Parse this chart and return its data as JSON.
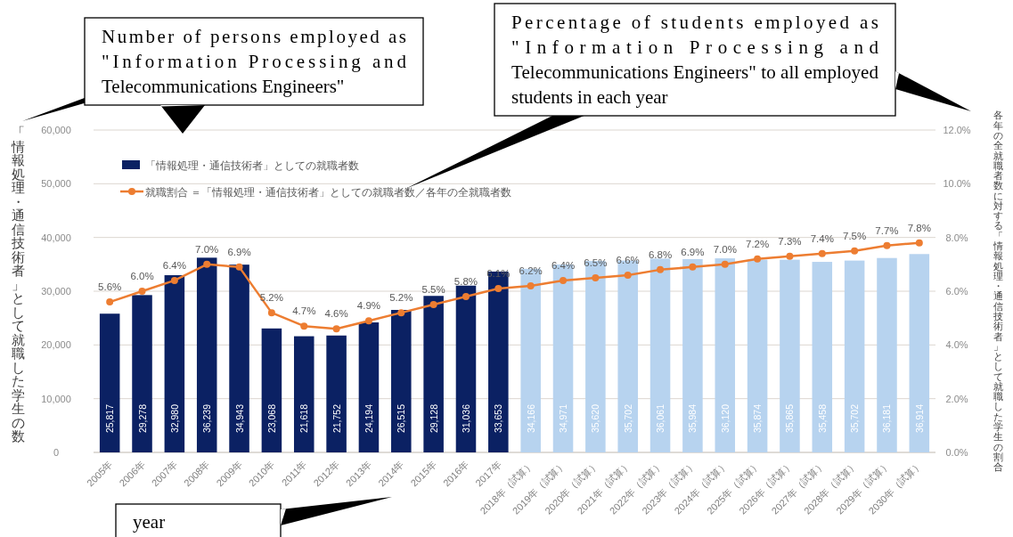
{
  "chart_data": {
    "type": "bar",
    "categories": [
      "2005年",
      "2006年",
      "2007年",
      "2008年",
      "2009年",
      "2010年",
      "2011年",
      "2012年",
      "2013年",
      "2014年",
      "2015年",
      "2016年",
      "2017年",
      "2018年（試算）",
      "2019年（試算）",
      "2020年（試算）",
      "2021年（試算）",
      "2022年（試算）",
      "2023年（試算）",
      "2024年（試算）",
      "2025年（試算）",
      "2026年（試算）",
      "2027年（試算）",
      "2028年（試算）",
      "2029年（試算）",
      "2030年（試算）"
    ],
    "series": [
      {
        "name": "「情報処理・通信技術者」としての就職者数",
        "color": "#0b2163",
        "colors": [
          "#0b2163",
          "#0b2163",
          "#0b2163",
          "#0b2163",
          "#0b2163",
          "#0b2163",
          "#0b2163",
          "#0b2163",
          "#0b2163",
          "#0b2163",
          "#0b2163",
          "#0b2163",
          "#0b2163",
          "#b7d3ef",
          "#b7d3ef",
          "#b7d3ef",
          "#b7d3ef",
          "#b7d3ef",
          "#b7d3ef",
          "#b7d3ef",
          "#b7d3ef",
          "#b7d3ef",
          "#b7d3ef",
          "#b7d3ef",
          "#b7d3ef",
          "#b7d3ef"
        ],
        "values": [
          25817,
          29278,
          32980,
          36239,
          34943,
          23068,
          21618,
          21752,
          24194,
          26515,
          29128,
          31036,
          33653,
          34166,
          34971,
          35620,
          35702,
          36061,
          35984,
          36120,
          35874,
          35865,
          35458,
          35702,
          36181,
          36914
        ],
        "value_labels": [
          "25,817",
          "29,278",
          "32,980",
          "36,239",
          "34,943",
          "23,068",
          "21,618",
          "21,752",
          "24,194",
          "26,515",
          "29,128",
          "31,036",
          "33,653",
          "34,166",
          "34,971",
          "35,620",
          "35,702",
          "36,061",
          "35,984",
          "36,120",
          "35,874",
          "35,865",
          "35,458",
          "35,702",
          "36,181",
          "36,914"
        ]
      },
      {
        "name": "就職割合 ＝「情報処理・通信技術者」としての就職者数／各年の全就職者数",
        "type": "line",
        "axis": "y2",
        "color": "#ed7d31",
        "marker": "circle",
        "values": [
          5.6,
          6.0,
          6.4,
          7.0,
          6.9,
          5.2,
          4.7,
          4.6,
          4.9,
          5.2,
          5.5,
          5.8,
          6.1,
          6.2,
          6.4,
          6.5,
          6.6,
          6.8,
          6.9,
          7.0,
          7.2,
          7.3,
          7.4,
          7.5,
          7.7,
          7.8
        ],
        "value_labels": [
          "5.6%",
          "6.0%",
          "6.4%",
          "7.0%",
          "6.9%",
          "5.2%",
          "4.7%",
          "4.6%",
          "4.9%",
          "5.2%",
          "5.5%",
          "5.8%",
          "6.1%",
          "6.2%",
          "6.4%",
          "6.5%",
          "6.6%",
          "6.8%",
          "6.9%",
          "7.0%",
          "7.2%",
          "7.3%",
          "7.4%",
          "7.5%",
          "7.7%",
          "7.8%"
        ]
      }
    ],
    "ylim": [
      0,
      60000
    ],
    "yticks": [
      0,
      {
        "value": 10000,
        "label": "10,000"
      },
      {
        "value": 20000,
        "label": "20,000"
      },
      {
        "value": 30000,
        "label": "30,000"
      },
      {
        "value": 40000,
        "label": "40,000"
      },
      {
        "value": 50000,
        "label": "50,000"
      },
      {
        "value": 60000,
        "label": "60,000"
      }
    ],
    "y2lim": [
      0,
      12
    ],
    "y2ticks": [
      {
        "value": 0,
        "label": "0.0%"
      },
      {
        "value": 2,
        "label": "2.0%"
      },
      {
        "value": 4,
        "label": "4.0%"
      },
      {
        "value": 6,
        "label": "6.0%"
      },
      {
        "value": 8,
        "label": "8.0%"
      },
      {
        "value": 10,
        "label": "10.0%"
      },
      {
        "value": 12,
        "label": "12.0%"
      }
    ],
    "ylabel": "「情報処理・通信技術者」として就職した学生の数",
    "y2label": "各年の全就職者数に対する「情報処理・通信技術者」として就職した学生の割合",
    "legend": "top left",
    "grid": "y",
    "annotations": [
      "Number of persons employed as \"Information Processing and Telecommunications Engineers\"",
      "Percentage of students employed as \"Information Processing and Telecommunications Engineers\" to all employed students in each year",
      "year"
    ]
  }
}
